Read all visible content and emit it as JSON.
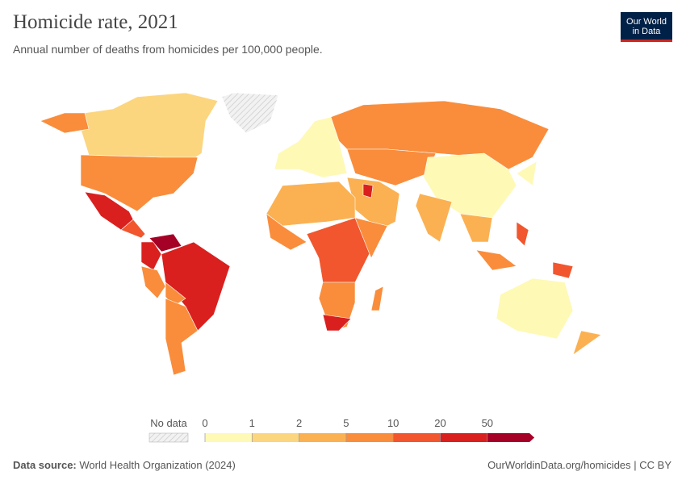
{
  "header": {
    "title": "Homicide rate, 2021",
    "subtitle": "Annual number of deaths from homicides per 100,000 people.",
    "logo": [
      "Our World",
      "in Data"
    ]
  },
  "legend": {
    "no_data": "No data",
    "ticks": [
      0,
      1,
      2,
      5,
      10,
      20,
      50
    ],
    "colors": [
      "#fef9b5",
      "#fcd57f",
      "#fbb152",
      "#f98d3c",
      "#f1562e",
      "#d9201f",
      "#a50026"
    ]
  },
  "footer": {
    "source_label": "Data source:",
    "source": "World Health Organization (2024)",
    "link": "OurWorldinData.org/homicides | CC BY"
  }
}
